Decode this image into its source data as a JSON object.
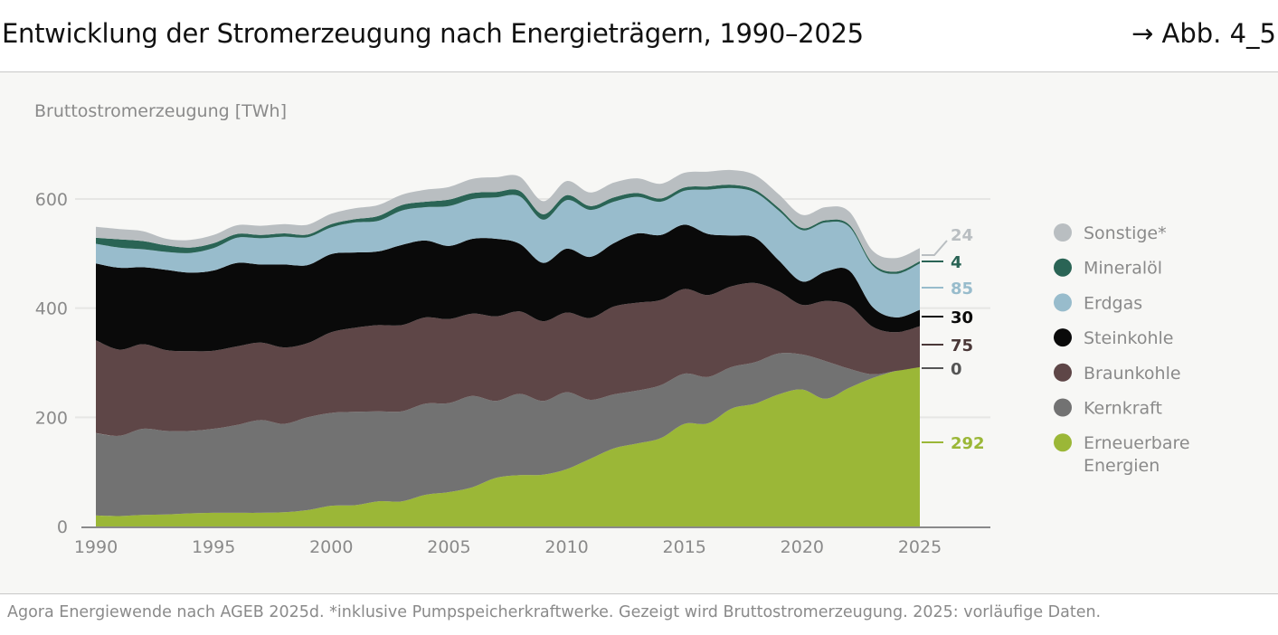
{
  "header": {
    "title": "Entwicklung der Stromerzeugung nach Energieträgern, 1990–2025",
    "figure_ref": "→ Abb. 4_5"
  },
  "footer": {
    "source": "Agora Energiewende nach AGEB 2025d. *inklusive Pumpspeicherkraftwerke. Gezeigt wird Bruttostromerzeugung. 2025: vorläufige Daten."
  },
  "chart_data": {
    "type": "area",
    "stacked": true,
    "ylabel": "Bruttostromerzeugung [TWh]",
    "ylim": [
      0,
      650
    ],
    "yticks": [
      "0",
      "200",
      "400",
      "600"
    ],
    "xlim": [
      1990,
      2025
    ],
    "xticks": [
      "1990",
      "1995",
      "2000",
      "2005",
      "2010",
      "2015",
      "2020",
      "2025"
    ],
    "grid": "horizontal",
    "legend_position": "right",
    "x": [
      1990,
      1991,
      1992,
      1993,
      1994,
      1995,
      1996,
      1997,
      1998,
      1999,
      2000,
      2001,
      2002,
      2003,
      2004,
      2005,
      2006,
      2007,
      2008,
      2009,
      2010,
      2011,
      2012,
      2013,
      2014,
      2015,
      2016,
      2017,
      2018,
      2019,
      2020,
      2021,
      2022,
      2023,
      2024,
      2025
    ],
    "series": [
      {
        "name": "Erneuerbare Energien",
        "color": "#9bb737",
        "end_label": "292",
        "values": [
          20,
          19,
          21,
          22,
          24,
          25,
          25,
          25,
          26,
          30,
          38,
          39,
          46,
          46,
          58,
          63,
          72,
          89,
          94,
          95,
          105,
          124,
          143,
          152,
          162,
          188,
          189,
          216,
          225,
          242,
          251,
          234,
          254,
          272,
          285,
          292
        ]
      },
      {
        "name": "Kernkraft",
        "color": "#727272",
        "end_label": "0",
        "values": [
          151,
          147,
          158,
          153,
          151,
          154,
          161,
          170,
          162,
          170,
          170,
          171,
          165,
          165,
          167,
          163,
          167,
          141,
          149,
          135,
          141,
          108,
          99,
          97,
          97,
          92,
          85,
          76,
          76,
          75,
          64,
          69,
          35,
          7,
          0,
          0
        ]
      },
      {
        "name": "Braunkohle",
        "color": "#5e4647",
        "end_label": "75",
        "values": [
          170,
          158,
          155,
          148,
          146,
          143,
          144,
          142,
          140,
          136,
          148,
          154,
          158,
          158,
          158,
          154,
          151,
          155,
          151,
          146,
          146,
          150,
          161,
          161,
          156,
          155,
          150,
          148,
          145,
          114,
          91,
          110,
          116,
          87,
          71,
          75
        ]
      },
      {
        "name": "Steinkohle",
        "color": "#0a0a0a",
        "end_label": "30",
        "values": [
          141,
          150,
          141,
          147,
          144,
          147,
          153,
          143,
          152,
          143,
          143,
          138,
          135,
          147,
          141,
          134,
          137,
          142,
          124,
          107,
          117,
          112,
          116,
          127,
          119,
          118,
          112,
          93,
          83,
          57,
          43,
          54,
          64,
          36,
          27,
          30
        ]
      },
      {
        "name": "Erdgas",
        "color": "#98bccc",
        "end_label": "85",
        "values": [
          36,
          37,
          33,
          33,
          36,
          41,
          46,
          48,
          51,
          51,
          49,
          55,
          56,
          63,
          61,
          73,
          73,
          76,
          87,
          79,
          89,
          86,
          76,
          67,
          61,
          62,
          81,
          87,
          83,
          91,
          94,
          90,
          80,
          76,
          80,
          85
        ]
      },
      {
        "name": "Mineralöl",
        "color": "#2a6455",
        "end_label": "4",
        "values": [
          11,
          15,
          15,
          12,
          10,
          9,
          7,
          6,
          6,
          5,
          6,
          6,
          9,
          10,
          10,
          12,
          11,
          10,
          10,
          10,
          9,
          7,
          8,
          7,
          6,
          6,
          6,
          6,
          5,
          5,
          4,
          4,
          4,
          4,
          4,
          4
        ]
      },
      {
        "name": "Sonstige*",
        "color": "#b9bec1",
        "end_label": "24",
        "values": [
          20,
          19,
          18,
          12,
          14,
          15,
          16,
          17,
          17,
          18,
          19,
          20,
          20,
          19,
          22,
          23,
          26,
          27,
          26,
          24,
          26,
          25,
          27,
          27,
          27,
          27,
          27,
          27,
          27,
          25,
          24,
          24,
          24,
          23,
          25,
          24
        ]
      }
    ],
    "legend": [
      "Sonstige*",
      "Mineralöl",
      "Erdgas",
      "Steinkohle",
      "Braunkohle",
      "Kernkraft",
      "Erneuerbare Energien"
    ]
  }
}
